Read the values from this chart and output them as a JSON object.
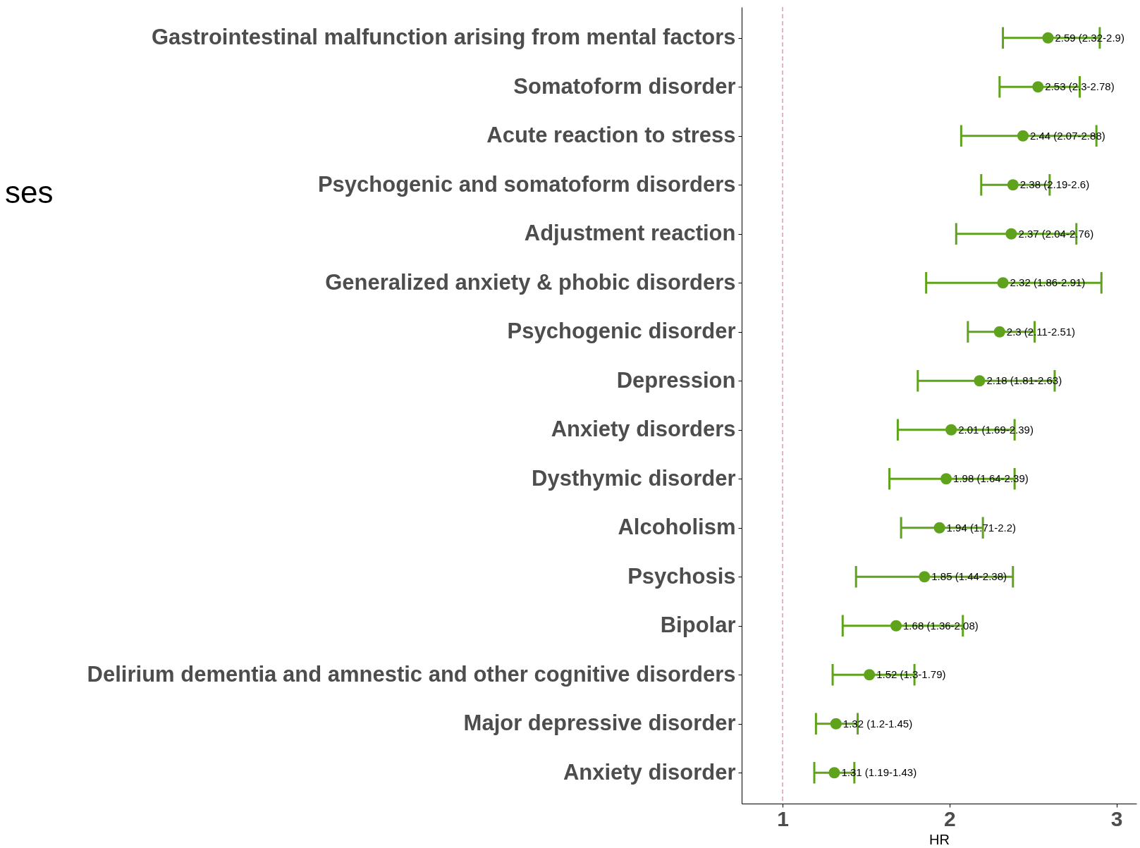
{
  "chart_data": {
    "type": "scatter",
    "orientation": "horizontal",
    "xlabel": "HR",
    "annotations": [
      "ses"
    ],
    "categories": [
      "Gastrointestinal malfunction arising from mental factors",
      "Somatoform disorder",
      "Acute reaction to stress",
      "Psychogenic and somatoform disorders",
      "Adjustment reaction",
      "Generalized anxiety & phobic disorders",
      "Psychogenic disorder",
      "Depression",
      "Anxiety disorders",
      "Dysthymic disorder",
      "Alcoholism",
      "Psychosis",
      "Bipolar",
      "Delirium dementia and amnestic and other cognitive disorders",
      "Major depressive disorder",
      "Anxiety disorder"
    ],
    "values": [
      2.59,
      2.53,
      2.44,
      2.38,
      2.37,
      2.32,
      2.3,
      2.18,
      2.01,
      1.98,
      1.94,
      1.85,
      1.68,
      1.52,
      1.32,
      1.31
    ],
    "errors": [
      [
        2.32,
        2.9
      ],
      [
        2.3,
        2.78
      ],
      [
        2.07,
        2.88
      ],
      [
        2.19,
        2.6
      ],
      [
        2.04,
        2.76
      ],
      [
        1.86,
        2.91
      ],
      [
        2.11,
        2.51
      ],
      [
        1.81,
        2.63
      ],
      [
        1.69,
        2.39
      ],
      [
        1.64,
        2.39
      ],
      [
        1.71,
        2.2
      ],
      [
        1.44,
        2.38
      ],
      [
        1.36,
        2.08
      ],
      [
        1.3,
        1.79
      ],
      [
        1.2,
        1.45
      ],
      [
        1.19,
        1.43
      ]
    ],
    "value_labels": [
      "2.59 (2.32-2.9)",
      "2.53 (2.3-2.78)",
      "2.44 (2.07-2.88)",
      "2.38 (2.19-2.6)",
      "2.37 (2.04-2.76)",
      "2.32 (1.86-2.91)",
      "2.3 (2.11-2.51)",
      "2.18 (1.81-2.63)",
      "2.01 (1.69-2.39)",
      "1.98 (1.64-2.39)",
      "1.94 (1.71-2.2)",
      "1.85 (1.44-2.38)",
      "1.68 (1.36-2.08)",
      "1.52 (1.3-1.79)",
      "1.32 (1.2-1.45)",
      "1.31 (1.19-1.43)"
    ],
    "color": "#5fa31c",
    "marker": "circle",
    "xlim": [
      0.755,
      3.12
    ],
    "xticks": [
      {
        "value": 1,
        "label": "1"
      },
      {
        "value": 2,
        "label": "2"
      },
      {
        "value": 3,
        "label": "3"
      }
    ],
    "grid": false,
    "ref_lines": [
      {
        "axis": "x",
        "value": 1,
        "color": "#e39ab4",
        "line_style": "dashed"
      }
    ]
  }
}
